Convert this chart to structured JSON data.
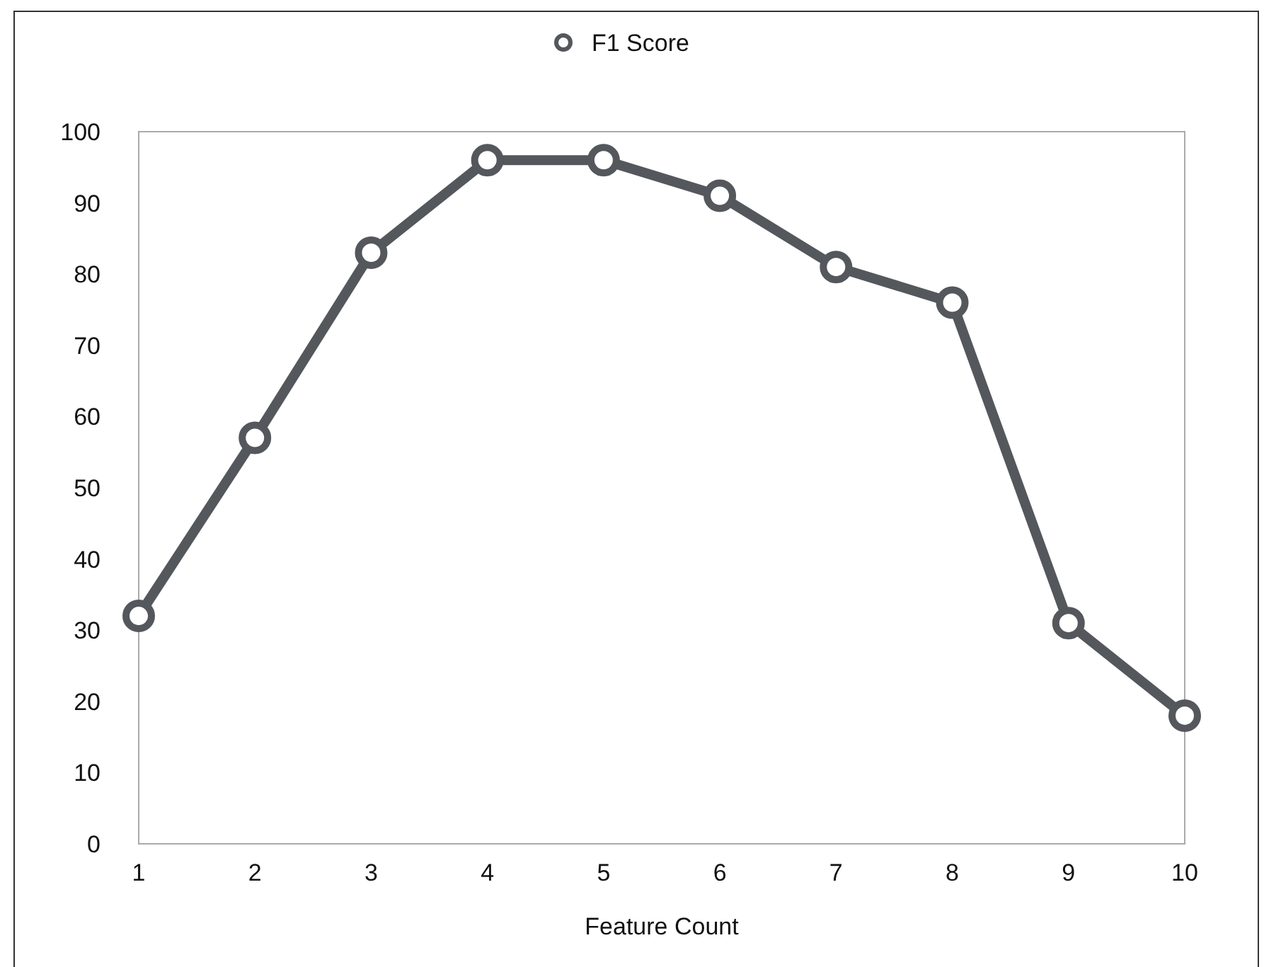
{
  "chart_data": {
    "type": "line",
    "xlabel": "Feature Count",
    "x": [
      1,
      2,
      3,
      4,
      5,
      6,
      7,
      8,
      9,
      10
    ],
    "series": [
      {
        "name": "F1 Score",
        "color": "#54575b",
        "values": [
          32,
          57,
          83,
          96,
          96,
          91,
          81,
          76,
          31,
          18
        ]
      }
    ],
    "xlim": [
      1,
      10
    ],
    "xticks": [
      1,
      2,
      3,
      4,
      5,
      6,
      7,
      8,
      9,
      10
    ],
    "ylim": [
      0,
      100
    ],
    "yticks": [
      0,
      10,
      20,
      30,
      40,
      50,
      60,
      70,
      80,
      90,
      100
    ],
    "grid": false,
    "legend": "top",
    "marker": "circle",
    "line_style": "solid"
  }
}
